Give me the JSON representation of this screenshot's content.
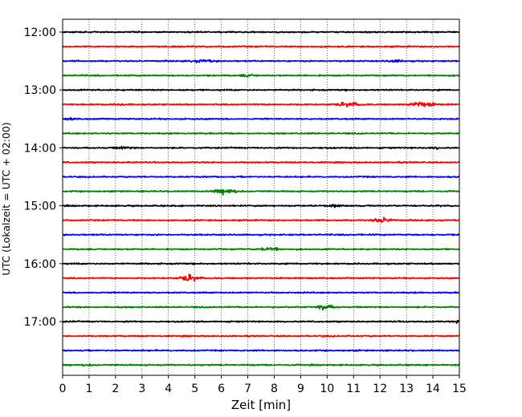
{
  "chart_data": {
    "type": "line",
    "title": "",
    "xlabel": "Zeit  [min]",
    "ylabel": "UTC (Lokalzeit = UTC + 02:00)",
    "xlim": [
      0,
      15
    ],
    "x_ticks": [
      0,
      1,
      2,
      3,
      4,
      5,
      6,
      7,
      8,
      9,
      10,
      11,
      12,
      13,
      14,
      15
    ],
    "x_tick_labels": [
      "0",
      "1",
      "2",
      "3",
      "4",
      "5",
      "6",
      "7",
      "8",
      "9",
      "10",
      "11",
      "12",
      "13",
      "14",
      "15"
    ],
    "y_ticks": [
      "12:00",
      "13:00",
      "14:00",
      "15:00",
      "16:00",
      "17:00"
    ],
    "grid": "vertical dotted",
    "trace_interval_minutes": 15,
    "color_cycle": [
      "#000000",
      "#ff0000",
      "#0000ff",
      "#008000"
    ],
    "series": [
      {
        "start": "12:00",
        "color": "#000000",
        "events": []
      },
      {
        "start": "12:15",
        "color": "#ff0000",
        "events": []
      },
      {
        "start": "12:30",
        "color": "#0000ff",
        "events": [
          {
            "t_min": 5.3,
            "amp": 0.35,
            "dur": 0.6
          },
          {
            "t_min": 12.6,
            "amp": 0.3,
            "dur": 0.4
          }
        ]
      },
      {
        "start": "12:45",
        "color": "#008000",
        "events": [
          {
            "t_min": 7.0,
            "amp": 0.3,
            "dur": 0.4
          }
        ]
      },
      {
        "start": "13:00",
        "color": "#000000",
        "events": []
      },
      {
        "start": "13:15",
        "color": "#ff0000",
        "events": [
          {
            "t_min": 10.8,
            "amp": 0.65,
            "dur": 0.6
          },
          {
            "t_min": 13.6,
            "amp": 0.9,
            "dur": 0.6
          },
          {
            "t_min": 2.2,
            "amp": 0.25,
            "dur": 0.3
          }
        ]
      },
      {
        "start": "13:30",
        "color": "#0000ff",
        "events": [
          {
            "t_min": 0.3,
            "amp": 0.35,
            "dur": 0.2
          }
        ]
      },
      {
        "start": "13:45",
        "color": "#008000",
        "events": []
      },
      {
        "start": "14:00",
        "color": "#000000",
        "events": [
          {
            "t_min": 2.3,
            "amp": 0.3,
            "dur": 0.5
          },
          {
            "t_min": 14.1,
            "amp": 0.3,
            "dur": 0.2
          }
        ]
      },
      {
        "start": "14:15",
        "color": "#ff0000",
        "events": []
      },
      {
        "start": "14:30",
        "color": "#0000ff",
        "events": []
      },
      {
        "start": "14:45",
        "color": "#008000",
        "events": [
          {
            "t_min": 6.2,
            "amp": 0.9,
            "dur": 0.6
          }
        ]
      },
      {
        "start": "15:00",
        "color": "#000000",
        "events": [
          {
            "t_min": 10.3,
            "amp": 0.45,
            "dur": 0.3
          }
        ]
      },
      {
        "start": "15:15",
        "color": "#ff0000",
        "events": [
          {
            "t_min": 12.1,
            "amp": 0.8,
            "dur": 0.5
          }
        ]
      },
      {
        "start": "15:30",
        "color": "#0000ff",
        "events": []
      },
      {
        "start": "15:45",
        "color": "#008000",
        "events": [
          {
            "t_min": 7.8,
            "amp": 0.55,
            "dur": 0.5
          }
        ]
      },
      {
        "start": "16:00",
        "color": "#000000",
        "events": []
      },
      {
        "start": "16:15",
        "color": "#ff0000",
        "events": [
          {
            "t_min": 4.8,
            "amp": 1.0,
            "dur": 0.5
          }
        ]
      },
      {
        "start": "16:30",
        "color": "#0000ff",
        "events": []
      },
      {
        "start": "16:45",
        "color": "#008000",
        "events": [
          {
            "t_min": 9.9,
            "amp": 0.8,
            "dur": 0.5
          }
        ]
      },
      {
        "start": "17:00",
        "color": "#000000",
        "events": [
          {
            "t_min": 14.9,
            "amp": 0.3,
            "dur": 0.2
          }
        ]
      },
      {
        "start": "17:15",
        "color": "#ff0000",
        "events": []
      },
      {
        "start": "17:30",
        "color": "#0000ff",
        "events": []
      },
      {
        "start": "17:45",
        "color": "#008000",
        "events": [
          {
            "t_min": 0.9,
            "amp": 0.25,
            "dur": 0.3
          }
        ]
      }
    ]
  }
}
